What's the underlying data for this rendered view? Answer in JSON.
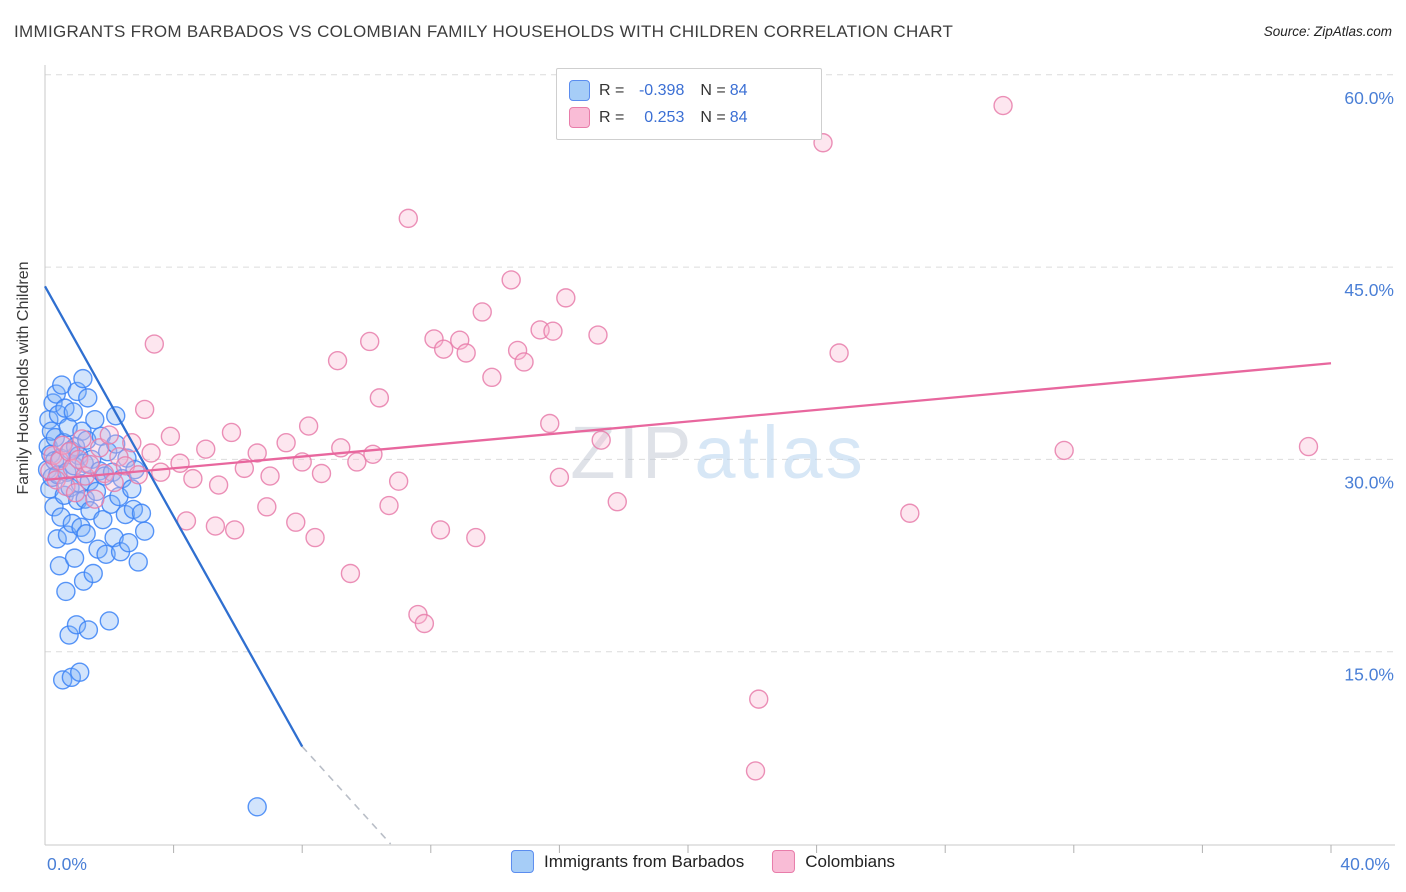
{
  "header": {
    "title": "IMMIGRANTS FROM BARBADOS VS COLOMBIAN FAMILY HOUSEHOLDS WITH CHILDREN CORRELATION CHART",
    "source": "Source: ZipAtlas.com"
  },
  "y_axis_title": "Family Households with Children",
  "watermark": {
    "part1": "ZIP",
    "part2": "atlas"
  },
  "legend_box": {
    "rows": [
      {
        "swatch": "blue",
        "r_label": "R =",
        "r_value": "-0.398",
        "n_label": "N =",
        "n_value": "84"
      },
      {
        "swatch": "pink",
        "r_label": "R =",
        "r_value": "0.253",
        "n_label": "N =",
        "n_value": "84"
      }
    ]
  },
  "bottom_legend": {
    "items": [
      {
        "swatch": "blue",
        "label": "Immigrants from Barbados"
      },
      {
        "swatch": "pink",
        "label": "Colombians"
      }
    ]
  },
  "chart_data": {
    "type": "scatter",
    "title": "IMMIGRANTS FROM BARBADOS VS COLOMBIAN FAMILY HOUSEHOLDS WITH CHILDREN CORRELATION CHART",
    "xlabel": "Immigrants from Barbados (%)",
    "ylabel": "Family Households with Children",
    "grid": "horizontal-dashed",
    "legend_position": "top-center-box and bottom-center",
    "x_axis": {
      "left_label": "0.0%",
      "right_label": "40.0%",
      "range_pct": [
        0,
        42
      ],
      "ticks_pct": [
        4,
        8,
        12,
        16,
        20,
        24,
        28,
        32,
        36,
        40
      ]
    },
    "y_axis": {
      "range_pct": [
        0,
        60.8
      ],
      "gridlines": [
        {
          "pct": 15,
          "label": "15.0%"
        },
        {
          "pct": 30,
          "label": "30.0%"
        },
        {
          "pct": 45,
          "label": "45.0%"
        },
        {
          "pct": 60,
          "label": "60.0%"
        }
      ]
    },
    "series": [
      {
        "name": "Immigrants from Barbados",
        "R": -0.398,
        "N": 84,
        "fill": "#7fb3f5",
        "stroke": "#3b82f6",
        "points": [
          [
            0.08,
            29.2
          ],
          [
            0.1,
            31.0
          ],
          [
            0.12,
            33.1
          ],
          [
            0.15,
            27.7
          ],
          [
            0.18,
            30.4
          ],
          [
            0.2,
            32.2
          ],
          [
            0.22,
            28.6
          ],
          [
            0.25,
            34.4
          ],
          [
            0.28,
            26.3
          ],
          [
            0.3,
            29.9
          ],
          [
            0.32,
            31.7
          ],
          [
            0.35,
            35.1
          ],
          [
            0.38,
            23.8
          ],
          [
            0.4,
            28.8
          ],
          [
            0.42,
            33.5
          ],
          [
            0.45,
            21.7
          ],
          [
            0.48,
            30.1
          ],
          [
            0.5,
            25.5
          ],
          [
            0.52,
            35.8
          ],
          [
            0.55,
            12.8
          ],
          [
            0.58,
            31.3
          ],
          [
            0.6,
            27.2
          ],
          [
            0.62,
            34.0
          ],
          [
            0.65,
            19.7
          ],
          [
            0.68,
            29.0
          ],
          [
            0.7,
            24.1
          ],
          [
            0.72,
            32.5
          ],
          [
            0.75,
            16.3
          ],
          [
            0.78,
            27.8
          ],
          [
            0.8,
            30.7
          ],
          [
            0.82,
            13.0
          ],
          [
            0.85,
            25.0
          ],
          [
            0.88,
            33.7
          ],
          [
            0.9,
            29.5
          ],
          [
            0.92,
            22.3
          ],
          [
            0.95,
            31.0
          ],
          [
            0.98,
            17.1
          ],
          [
            1.0,
            35.3
          ],
          [
            1.02,
            26.8
          ],
          [
            1.05,
            30.3
          ],
          [
            1.08,
            13.4
          ],
          [
            1.1,
            28.1
          ],
          [
            1.12,
            24.7
          ],
          [
            1.15,
            32.2
          ],
          [
            1.18,
            36.3
          ],
          [
            1.2,
            20.5
          ],
          [
            1.22,
            29.7
          ],
          [
            1.25,
            26.9
          ],
          [
            1.28,
            24.2
          ],
          [
            1.3,
            31.5
          ],
          [
            1.33,
            34.8
          ],
          [
            1.35,
            16.7
          ],
          [
            1.38,
            28.3
          ],
          [
            1.4,
            26.0
          ],
          [
            1.45,
            30.0
          ],
          [
            1.5,
            21.1
          ],
          [
            1.55,
            33.1
          ],
          [
            1.6,
            27.5
          ],
          [
            1.65,
            23.0
          ],
          [
            1.7,
            29.1
          ],
          [
            1.75,
            31.8
          ],
          [
            1.8,
            25.3
          ],
          [
            1.85,
            28.7
          ],
          [
            1.9,
            22.6
          ],
          [
            1.95,
            30.6
          ],
          [
            2.0,
            17.4
          ],
          [
            2.05,
            26.5
          ],
          [
            2.1,
            29.0
          ],
          [
            2.15,
            23.9
          ],
          [
            2.2,
            31.2
          ],
          [
            2.3,
            27.1
          ],
          [
            2.35,
            22.8
          ],
          [
            2.4,
            28.5
          ],
          [
            2.5,
            25.7
          ],
          [
            2.55,
            30.1
          ],
          [
            2.6,
            23.5
          ],
          [
            2.7,
            27.7
          ],
          [
            2.75,
            26.1
          ],
          [
            2.8,
            29.2
          ],
          [
            2.9,
            22.0
          ],
          [
            3.0,
            25.8
          ],
          [
            3.1,
            24.4
          ],
          [
            2.2,
            33.4
          ],
          [
            6.6,
            2.9
          ]
        ]
      },
      {
        "name": "Colombians",
        "R": 0.253,
        "N": 84,
        "fill": "#f9b8d0",
        "stroke": "#e87daa",
        "points": [
          [
            29.8,
            57.6
          ],
          [
            24.2,
            54.7
          ],
          [
            11.3,
            48.8
          ],
          [
            14.5,
            44.0
          ],
          [
            16.2,
            42.6
          ],
          [
            13.6,
            41.5
          ],
          [
            15.4,
            40.1
          ],
          [
            15.8,
            40.0
          ],
          [
            12.1,
            39.4
          ],
          [
            12.9,
            39.3
          ],
          [
            10.1,
            39.2
          ],
          [
            17.2,
            39.7
          ],
          [
            14.7,
            38.5
          ],
          [
            13.1,
            38.3
          ],
          [
            12.4,
            38.6
          ],
          [
            14.9,
            37.6
          ],
          [
            13.9,
            36.4
          ],
          [
            9.1,
            37.7
          ],
          [
            24.7,
            38.3
          ],
          [
            3.4,
            39.0
          ],
          [
            10.4,
            34.8
          ],
          [
            8.2,
            32.6
          ],
          [
            39.3,
            31.0
          ],
          [
            31.7,
            30.7
          ],
          [
            10.2,
            30.4
          ],
          [
            17.3,
            31.5
          ],
          [
            15.7,
            32.8
          ],
          [
            9.7,
            29.8
          ],
          [
            26.9,
            25.8
          ],
          [
            17.8,
            26.7
          ],
          [
            22.2,
            11.3
          ],
          [
            22.1,
            5.7
          ],
          [
            11.6,
            17.9
          ],
          [
            11.8,
            17.2
          ],
          [
            9.5,
            21.1
          ],
          [
            12.3,
            24.5
          ],
          [
            8.4,
            23.9
          ],
          [
            10.7,
            26.4
          ],
          [
            5.3,
            24.8
          ],
          [
            5.9,
            24.5
          ],
          [
            4.4,
            25.2
          ],
          [
            0.15,
            29.1
          ],
          [
            0.25,
            30.3
          ],
          [
            0.35,
            28.4
          ],
          [
            0.45,
            29.9
          ],
          [
            0.55,
            31.1
          ],
          [
            0.65,
            27.9
          ],
          [
            0.75,
            30.6
          ],
          [
            0.85,
            29.3
          ],
          [
            0.95,
            27.4
          ],
          [
            1.05,
            30.0
          ],
          [
            1.15,
            31.6
          ],
          [
            1.25,
            28.7
          ],
          [
            1.4,
            29.6
          ],
          [
            1.55,
            26.9
          ],
          [
            1.7,
            30.9
          ],
          [
            1.85,
            28.9
          ],
          [
            2.0,
            31.9
          ],
          [
            2.15,
            28.2
          ],
          [
            2.3,
            30.2
          ],
          [
            2.5,
            29.5
          ],
          [
            2.7,
            31.3
          ],
          [
            2.9,
            28.8
          ],
          [
            3.1,
            33.9
          ],
          [
            3.3,
            30.5
          ],
          [
            3.6,
            29.0
          ],
          [
            3.9,
            31.8
          ],
          [
            4.2,
            29.7
          ],
          [
            4.6,
            28.5
          ],
          [
            5.0,
            30.8
          ],
          [
            5.4,
            28.0
          ],
          [
            5.8,
            32.1
          ],
          [
            6.2,
            29.3
          ],
          [
            6.6,
            30.5
          ],
          [
            7.0,
            28.7
          ],
          [
            7.5,
            31.3
          ],
          [
            8.0,
            29.8
          ],
          [
            8.6,
            28.9
          ],
          [
            9.2,
            30.9
          ],
          [
            6.9,
            26.3
          ],
          [
            7.8,
            25.1
          ],
          [
            13.4,
            23.9
          ],
          [
            11.0,
            28.3
          ],
          [
            16.0,
            28.6
          ]
        ]
      }
    ],
    "trendlines": [
      {
        "name": "barbados-trend",
        "color": "#2f6fd0",
        "start": [
          0,
          43.5
        ],
        "end": [
          8.0,
          7.6
        ],
        "dashed_extension_end": [
          10.75,
          0.0
        ],
        "dashed_color": "#b9bec7"
      },
      {
        "name": "colombians-trend",
        "color": "#e8679e",
        "start": [
          0,
          28.4
        ],
        "end": [
          40,
          37.5
        ]
      }
    ]
  }
}
